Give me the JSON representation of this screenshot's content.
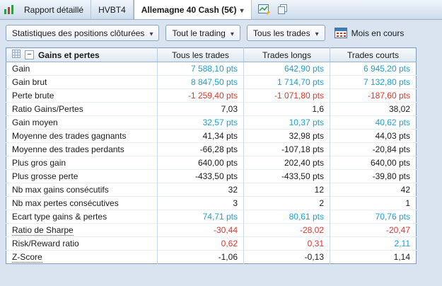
{
  "tabs": [
    {
      "label": "Rapport détaillé"
    },
    {
      "label": "HVBT4"
    },
    {
      "label": "Allemagne 40 Cash (5€)"
    }
  ],
  "toolbar": {
    "stats_dropdown": "Statistiques des positions clôturées",
    "trading_dropdown": "Tout le trading",
    "trades_dropdown": "Tous les trades",
    "period_label": "Mois en cours"
  },
  "icons": {
    "collapse": "−"
  },
  "table": {
    "title": "Gains et pertes",
    "columns": [
      "Tous les trades",
      "Trades longs",
      "Trades courts"
    ],
    "rows": [
      {
        "label": "Gain",
        "values": [
          "7 588,10 pts",
          "642,90 pts",
          "6 945,20 pts"
        ],
        "colors": [
          "blue",
          "blue",
          "blue"
        ]
      },
      {
        "label": "Gain brut",
        "values": [
          "8 847,50 pts",
          "1 714,70 pts",
          "7 132,80 pts"
        ],
        "colors": [
          "blue",
          "blue",
          "blue"
        ]
      },
      {
        "label": "Perte brute",
        "values": [
          "-1 259,40 pts",
          "-1 071,80 pts",
          "-187,60 pts"
        ],
        "colors": [
          "red",
          "red",
          "red"
        ]
      },
      {
        "label": "Ratio Gains/Pertes",
        "values": [
          "7,03",
          "1,6",
          "38,02"
        ],
        "colors": [
          "black",
          "black",
          "black"
        ]
      },
      {
        "label": "Gain moyen",
        "values": [
          "32,57 pts",
          "10,37 pts",
          "40,62 pts"
        ],
        "colors": [
          "blue",
          "blue",
          "blue"
        ]
      },
      {
        "label": "Moyenne des trades gagnants",
        "values": [
          "41,34 pts",
          "32,98 pts",
          "44,03 pts"
        ],
        "colors": [
          "black",
          "black",
          "black"
        ]
      },
      {
        "label": "Moyenne des trades perdants",
        "values": [
          "-66,28 pts",
          "-107,18 pts",
          "-20,84 pts"
        ],
        "colors": [
          "black",
          "black",
          "black"
        ]
      },
      {
        "label": "Plus gros gain",
        "values": [
          "640,00 pts",
          "202,40 pts",
          "640,00 pts"
        ],
        "colors": [
          "black",
          "black",
          "black"
        ]
      },
      {
        "label": "Plus grosse perte",
        "values": [
          "-433,50 pts",
          "-433,50 pts",
          "-39,80 pts"
        ],
        "colors": [
          "black",
          "black",
          "black"
        ]
      },
      {
        "label": "Nb max gains consécutifs",
        "values": [
          "32",
          "12",
          "42"
        ],
        "colors": [
          "black",
          "black",
          "black"
        ]
      },
      {
        "label": "Nb max pertes consécutives",
        "values": [
          "3",
          "2",
          "1"
        ],
        "colors": [
          "black",
          "black",
          "black"
        ]
      },
      {
        "label": "Ecart type gains & pertes",
        "values": [
          "74,71 pts",
          "80,61 pts",
          "70,76 pts"
        ],
        "colors": [
          "blue",
          "blue",
          "blue"
        ]
      },
      {
        "label": "Ratio de Sharpe",
        "values": [
          "-30,44",
          "-28,02",
          "-20,47"
        ],
        "colors": [
          "red",
          "red",
          "red"
        ],
        "underline": true
      },
      {
        "label": "Risk/Reward ratio",
        "values": [
          "0,62",
          "0,31",
          "2,11"
        ],
        "colors": [
          "red",
          "red",
          "blue"
        ]
      },
      {
        "label": "Z-Score",
        "values": [
          "-1,06",
          "-0,13",
          "1,14"
        ],
        "colors": [
          "black",
          "black",
          "black"
        ],
        "underline": true
      }
    ]
  }
}
